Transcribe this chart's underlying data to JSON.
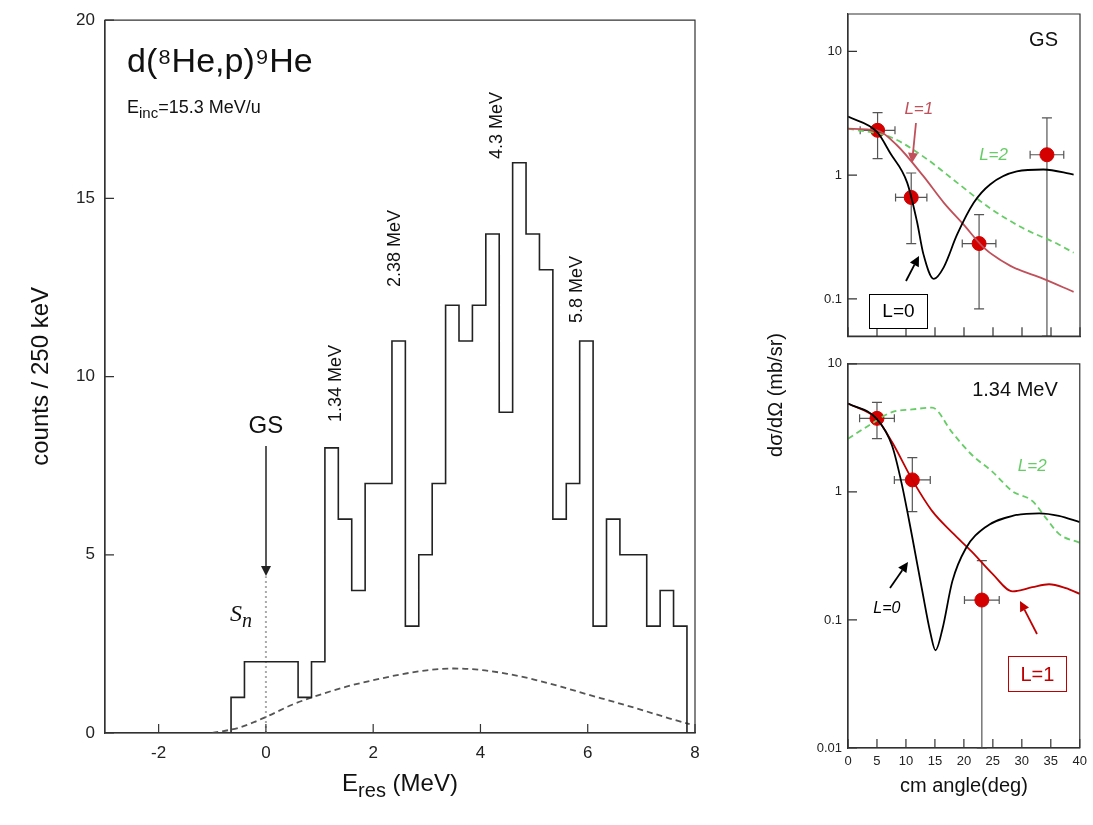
{
  "chart_data": [
    {
      "type": "histogram",
      "title": "d(⁸He,p)⁹He",
      "subtitle": "E$_{inc}$=15.3 MeV/u",
      "xlabel": "E$_{res}$ (MeV)",
      "ylabel": "counts / 250 keV",
      "bins": [
        -0.65,
        -0.4,
        -0.15,
        0.1,
        0.35,
        0.6,
        0.85,
        1.1,
        1.35,
        1.6,
        1.85,
        2.1,
        2.35,
        2.6,
        2.85,
        3.1,
        3.35,
        3.6,
        3.85,
        4.1,
        4.35,
        4.6,
        4.85,
        5.1,
        5.35,
        5.6,
        5.85,
        6.1,
        6.35,
        6.6,
        6.85,
        7.1,
        7.35,
        7.6,
        7.85
      ],
      "values": [
        1,
        2,
        2,
        2,
        2,
        1,
        2,
        8,
        6,
        4,
        7,
        7,
        11,
        3,
        5,
        7,
        12,
        11,
        12,
        14,
        9,
        16,
        14,
        13,
        6,
        7,
        11,
        3,
        6,
        5,
        5,
        3,
        4,
        3
      ],
      "color": "#222222",
      "series": [
        {
          "type": "line",
          "color": "#555555",
          "line_style": "dashed",
          "marker": "none",
          "x": [
            -1,
            -0.5,
            0,
            0.5,
            1,
            1.5,
            2,
            2.5,
            3,
            3.5,
            4,
            4.5,
            5,
            5.5,
            6,
            6.5,
            7,
            7.5,
            7.9
          ],
          "values": [
            0,
            0.15,
            0.45,
            0.8,
            1.07,
            1.3,
            1.48,
            1.64,
            1.76,
            1.81,
            1.77,
            1.66,
            1.5,
            1.3,
            1.08,
            0.87,
            0.65,
            0.42,
            0.25
          ]
        }
      ],
      "xlim": [
        -3,
        8
      ],
      "xticks": [
        -2,
        0,
        2,
        4,
        6,
        8
      ],
      "ylim": [
        0,
        20
      ],
      "yticks": [
        0,
        5,
        10,
        15,
        20
      ],
      "grid": false,
      "legend": false,
      "ref_lines": [
        {
          "axis": "x",
          "value": 0,
          "label": "S$_{n}$",
          "color": "#aaaaaa",
          "line_style": "dotted"
        }
      ],
      "annotations": [
        "GS",
        "1.34 MeV",
        "2.38 MeV",
        "4.3 MeV",
        "5.8 MeV"
      ]
    },
    {
      "type": "line",
      "title": "GS",
      "ylabel": "dσ/dΩ (mb/sr)",
      "log": "y",
      "xlim": [
        0,
        40
      ],
      "xticks": [
        0,
        5,
        10,
        15,
        20,
        25,
        30,
        35,
        40
      ],
      "ylim": [
        0.05,
        20
      ],
      "yticks": [
        0.1,
        1,
        10
      ],
      "tick_labels": "y",
      "grid": false,
      "legend": false,
      "series": [
        {
          "type": "line",
          "color": "#000000",
          "marker": "none",
          "line_style": "solid",
          "x": [
            0,
            5,
            7.3,
            10.2,
            11.9,
            13,
            14.8,
            16.5,
            18.8,
            21.7,
            24.5,
            29.1,
            33.7,
            38.9
          ],
          "values": [
            2.97,
            2.23,
            1.5,
            0.87,
            0.42,
            0.23,
            0.145,
            0.18,
            0.33,
            0.6,
            0.84,
            1.07,
            1.11,
            1.01
          ]
        },
        {
          "type": "line",
          "color": "#c0505a",
          "marker": "none",
          "line_style": "solid",
          "x": [
            0,
            5,
            8.4,
            13,
            16.5,
            19.9,
            23.4,
            28,
            33.7,
            38.9
          ],
          "values": [
            2.37,
            2.3,
            1.75,
            0.98,
            0.6,
            0.4,
            0.26,
            0.185,
            0.145,
            0.114
          ]
        },
        {
          "type": "line",
          "color": "#66cc66",
          "marker": "none",
          "line_style": "dashed",
          "x": [
            0,
            7.3,
            13,
            18.8,
            24.5,
            30.3,
            36,
            38.9
          ],
          "values": [
            2.37,
            2.03,
            1.41,
            0.87,
            0.54,
            0.37,
            0.28,
            0.236
          ]
        },
        {
          "type": "scatter",
          "color": "#d40000",
          "marker": "circle",
          "x": [
            5.1,
            10.9,
            22.6,
            34.3
          ],
          "values": [
            2.3,
            0.66,
            0.28,
            1.46
          ],
          "errors": [
            [
              1.36,
              3.2
            ],
            [
              0.28,
              1.04
            ],
            [
              0.083,
              0.48
            ],
            [
              0.05,
              2.9
            ]
          ],
          "xerrors": [
            3,
            2.7,
            2.9,
            2.9
          ]
        }
      ],
      "annotations": [
        {
          "text": "L=1",
          "x": 11,
          "y": 1.25
        },
        "L=2",
        "L=0"
      ]
    },
    {
      "type": "line",
      "title": "1.34 MeV",
      "xlabel": "cm angle(deg)",
      "log": "y",
      "xlim": [
        0,
        40
      ],
      "xticks": [
        0,
        5,
        10,
        15,
        20,
        25,
        30,
        35,
        40
      ],
      "ylim": [
        0.01,
        10
      ],
      "yticks": [
        0.01,
        0.1,
        1,
        10
      ],
      "grid": false,
      "legend": false,
      "series": [
        {
          "type": "line",
          "color": "#000000",
          "marker": "none",
          "line_style": "solid",
          "x": [
            0,
            5,
            7.6,
            9.3,
            11.1,
            12.8,
            14.2,
            15.1,
            16.3,
            18,
            20.3,
            23.7,
            28.4,
            33,
            36.4,
            40
          ],
          "values": [
            4.9,
            3.7,
            2.3,
            1.14,
            0.44,
            0.17,
            0.08,
            0.058,
            0.085,
            0.2,
            0.36,
            0.53,
            0.65,
            0.68,
            0.65,
            0.58
          ]
        },
        {
          "type": "line",
          "color": "#c00000",
          "marker": "none",
          "line_style": "solid",
          "x": [
            0,
            5,
            7.6,
            11.1,
            14.5,
            18,
            21.4,
            24.9,
            28.4,
            31.8,
            34.7,
            37.6,
            40
          ],
          "values": [
            4.9,
            3.7,
            2.45,
            1.24,
            0.71,
            0.48,
            0.34,
            0.23,
            0.167,
            0.18,
            0.19,
            0.177,
            0.16
          ]
        },
        {
          "type": "line",
          "color": "#66cc66",
          "marker": "none",
          "line_style": "dashed",
          "x": [
            0,
            3.6,
            7.6,
            11.1,
            14.5,
            18,
            21.4,
            24.9,
            28.4,
            31.8,
            34.1,
            36.4,
            40
          ],
          "values": [
            2.6,
            3.3,
            4.2,
            4.4,
            4.55,
            2.9,
            1.94,
            1.44,
            1.01,
            0.85,
            0.63,
            0.47,
            0.4
          ]
        },
        {
          "type": "scatter",
          "color": "#d40000",
          "marker": "circle",
          "x": [
            5,
            11.1,
            23.1
          ],
          "values": [
            3.75,
            1.24,
            0.143
          ],
          "errors": [
            [
              2.6,
              5.0
            ],
            [
              0.7,
              1.85
            ],
            [
              0.01,
              0.29
            ]
          ],
          "xerrors": [
            3,
            3.1,
            3
          ]
        }
      ],
      "annotations": [
        "L=2",
        "L=0",
        "L=1"
      ]
    }
  ]
}
